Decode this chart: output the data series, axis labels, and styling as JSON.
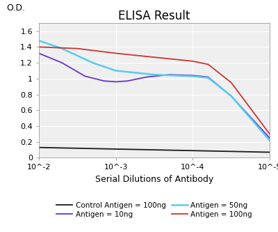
{
  "title": "ELISA Result",
  "ylabel": "O.D.",
  "xlabel": "Serial Dilutions of Antibody",
  "xlim": [
    0,
    3
  ],
  "ylim": [
    0,
    1.7
  ],
  "yticks": [
    0,
    0.2,
    0.4,
    0.6,
    0.8,
    1.0,
    1.2,
    1.4,
    1.6
  ],
  "ytick_labels": [
    "0",
    "0.2",
    "0.4",
    "0.6",
    "0.8",
    "1",
    "1.2",
    "1.4",
    "1.6"
  ],
  "xtick_labels": [
    "10^-2",
    "10^-3",
    "10^-4",
    "10^-5"
  ],
  "xtick_positions": [
    0,
    1,
    2,
    3
  ],
  "plot_bg_color": "#efefef",
  "series": [
    {
      "label": "Control Antigen = 100ng",
      "color": "#1a1a1a",
      "linewidth": 1.3,
      "x": [
        0,
        0.5,
        1.0,
        1.5,
        2.0,
        2.5,
        3.0
      ],
      "y": [
        0.13,
        0.12,
        0.11,
        0.1,
        0.09,
        0.08,
        0.07
      ]
    },
    {
      "label": "Antigen = 10ng",
      "color": "#6633cc",
      "linewidth": 1.3,
      "x": [
        0,
        0.3,
        0.6,
        0.85,
        1.0,
        1.15,
        1.4,
        1.7,
        2.0,
        2.2,
        2.5,
        3.0
      ],
      "y": [
        1.32,
        1.2,
        1.03,
        0.97,
        0.96,
        0.97,
        1.02,
        1.05,
        1.04,
        1.02,
        0.78,
        0.25
      ]
    },
    {
      "label": "Antigen = 50ng",
      "color": "#55ccee",
      "linewidth": 1.8,
      "x": [
        0,
        0.3,
        0.7,
        1.0,
        1.5,
        2.0,
        2.2,
        2.5,
        3.0
      ],
      "y": [
        1.48,
        1.38,
        1.2,
        1.1,
        1.05,
        1.03,
        1.01,
        0.78,
        0.22
      ]
    },
    {
      "label": "Antigen = 100ng",
      "color": "#cc3333",
      "linewidth": 1.3,
      "x": [
        0,
        0.5,
        1.0,
        1.5,
        2.0,
        2.2,
        2.5,
        3.0
      ],
      "y": [
        1.4,
        1.38,
        1.32,
        1.27,
        1.22,
        1.18,
        0.95,
        0.3
      ]
    }
  ],
  "legend_order": [
    0,
    2,
    1,
    3
  ],
  "legend_ncols_row1": [
    "Control Antigen = 100ng",
    "Antigen = 10ng"
  ],
  "legend_ncols_row2": [
    "Antigen = 50ng",
    "Antigen = 100ng"
  ],
  "title_fontsize": 12,
  "axis_label_fontsize": 9,
  "tick_fontsize": 8,
  "legend_fontsize": 7.5
}
